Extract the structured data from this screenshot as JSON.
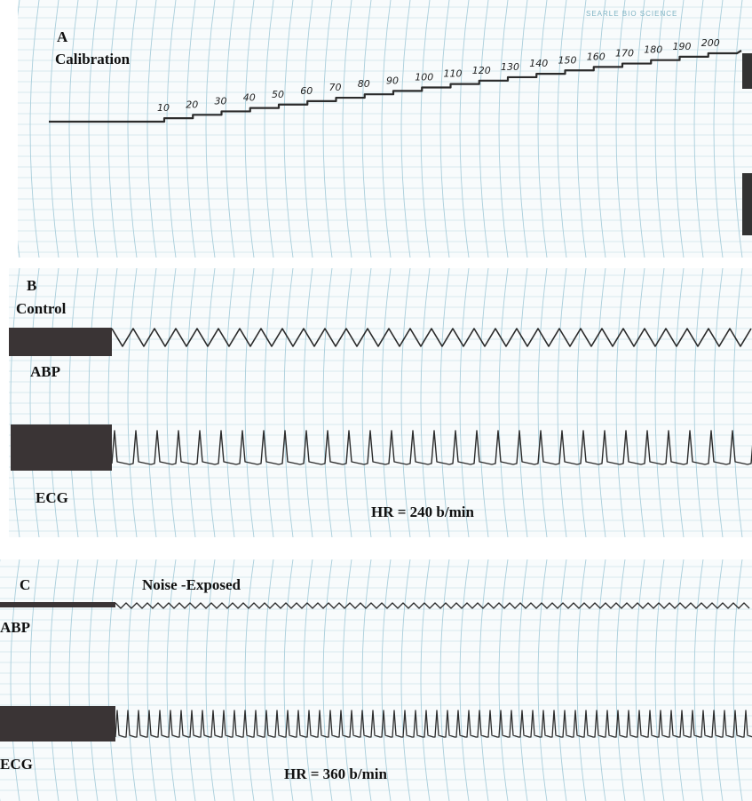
{
  "header": {
    "brand": "SEARLE BIO SCIENCE"
  },
  "panels": [
    {
      "letter": "A",
      "title": "Calibration",
      "scale_marks": [
        "10",
        "20",
        "30",
        "40",
        "50",
        "60",
        "70",
        "80",
        "90",
        "100",
        "110",
        "120",
        "130",
        "140",
        "150",
        "160",
        "170",
        "180",
        "190",
        "200"
      ]
    },
    {
      "letter": "B",
      "title": "Control",
      "channels": [
        "ABP",
        "ECG"
      ],
      "heart_rate": "HR = 240 b/min"
    },
    {
      "letter": "C",
      "title": "Noise -Exposed",
      "channels": [
        "ABP",
        "ECG"
      ],
      "heart_rate": "HR = 360 b/min"
    }
  ]
}
